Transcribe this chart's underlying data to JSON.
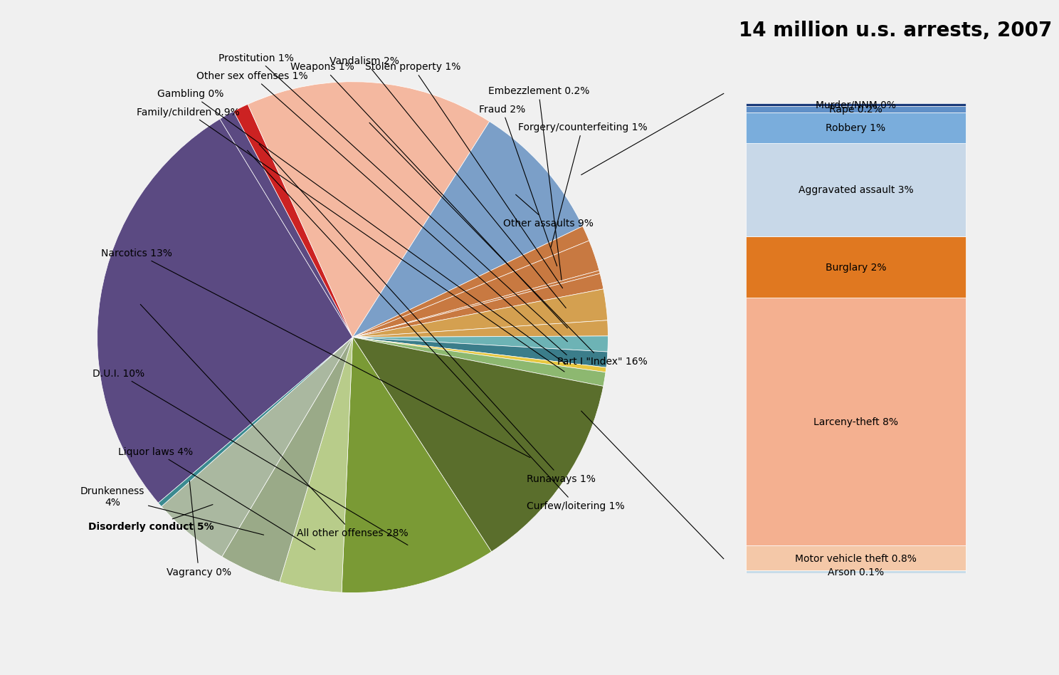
{
  "title": "14 million u.s. arrests, 2007",
  "pie_slices": [
    {
      "label": "All other offenses 28%",
      "value": 28,
      "color": "#5b4a82"
    },
    {
      "label": "Curfew/loitering 1%",
      "value": 1,
      "color": "#5b4a82"
    },
    {
      "label": "Runaways 1%",
      "value": 1,
      "color": "#cc2222"
    },
    {
      "label": "Part I \"Index\" 16%",
      "value": 16,
      "color": "#f4b8a0"
    },
    {
      "label": "Other assaults 9%",
      "value": 9,
      "color": "#7b9fc8"
    },
    {
      "label": "Forgery/counterfeiting 1%",
      "value": 1,
      "color": "#c87941"
    },
    {
      "label": "Fraud 2%",
      "value": 2,
      "color": "#c87941"
    },
    {
      "label": "Embezzlement 0.2%",
      "value": 0.2,
      "color": "#c87941"
    },
    {
      "label": "Stolen property 1%",
      "value": 1,
      "color": "#c87941"
    },
    {
      "label": "Vandalism 2%",
      "value": 2,
      "color": "#d4a050"
    },
    {
      "label": "Weapons 1%",
      "value": 1,
      "color": "#d4a050"
    },
    {
      "label": "Prostitution 1%",
      "value": 1,
      "color": "#6db3b5"
    },
    {
      "label": "Other sex offenses 1%",
      "value": 1,
      "color": "#3b7d8a"
    },
    {
      "label": "Gambling 0%",
      "value": 0.3,
      "color": "#e8c840"
    },
    {
      "label": "Family/children 0.9%",
      "value": 0.9,
      "color": "#8db870"
    },
    {
      "label": "Narcotics 13%",
      "value": 13,
      "color": "#5a6e2c"
    },
    {
      "label": "D.U.I. 10%",
      "value": 10,
      "color": "#7a9a35"
    },
    {
      "label": "Liquor laws 4%",
      "value": 4,
      "color": "#b8cc8a"
    },
    {
      "label": "Drunkenness\n4%",
      "value": 4,
      "color": "#9aaa88"
    },
    {
      "label": "Disorderly conduct 5%",
      "value": 5,
      "color": "#aab8a0"
    },
    {
      "label": "Vagrancy 0%",
      "value": 0.3,
      "color": "#3a8a90"
    }
  ],
  "bar_slices": [
    {
      "label": "Arson 0.1%",
      "value": 0.1,
      "color": "#c8dce8"
    },
    {
      "label": "Motor vehicle theft 0.8%",
      "value": 0.8,
      "color": "#f4c8a8"
    },
    {
      "label": "Larceny-theft 8%",
      "value": 8,
      "color": "#f4b090"
    },
    {
      "label": "Burglary 2%",
      "value": 2,
      "color": "#e07820"
    },
    {
      "label": "Aggravated assault 3%",
      "value": 3,
      "color": "#c8d8e8"
    },
    {
      "label": "Robbery 1%",
      "value": 1,
      "color": "#7aaddc"
    },
    {
      "label": "Rape 0.2%",
      "value": 0.2,
      "color": "#6090c8"
    },
    {
      "label": "Murder/NNM 0%",
      "value": 0.1,
      "color": "#1a3a7a"
    }
  ],
  "background_color": "#f0f0f0"
}
